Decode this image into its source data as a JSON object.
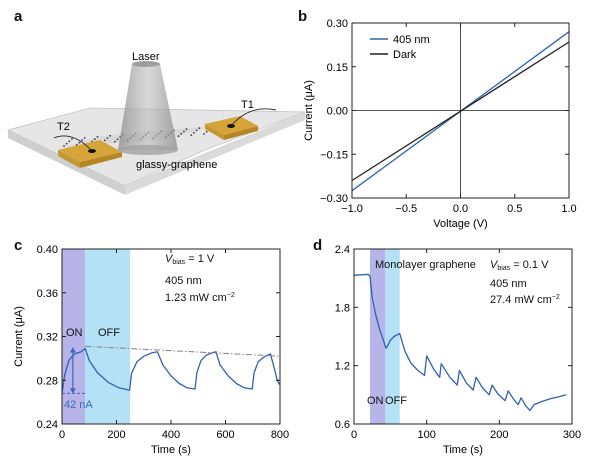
{
  "colors": {
    "blue": "#2f62b0",
    "black": "#222222",
    "gray_dashdot": "#8c7f85",
    "on_shade": "#a9a7e4",
    "off_shade": "#a7dcf5",
    "label_blue": "#3a6ab8",
    "gold": "#d8a93c"
  },
  "panels": {
    "a": {
      "letter": "a",
      "laser_label": "Laser",
      "t1_label": "T1",
      "t2_label": "T2",
      "sample_label": "glassy-graphene"
    },
    "b": {
      "letter": "b",
      "legend_405": "405 nm",
      "legend_dark": "Dark"
    },
    "c": {
      "letter": "c",
      "vbias_symbol": "V",
      "vbias_sub": "bias",
      "vbias_value": " = 1 V",
      "wavelength": "405 nm",
      "power": "1.23 mW cm",
      "power_exp": "−2",
      "on_label": "ON",
      "off_label": "OFF",
      "delta_label": "42 nA"
    },
    "d": {
      "letter": "d",
      "vbias_symbol": "V",
      "vbias_sub": "bias",
      "vbias_value": " = 0.1 V",
      "wavelength": "405 nm",
      "power": "27.4 mW cm",
      "power_exp": "−2",
      "mono_label": "Monolayer graphene",
      "on_label": "ON",
      "off_label": "OFF"
    }
  },
  "chart_data": [
    {
      "panel": "b",
      "type": "line",
      "xlabel": "Voltage (V)",
      "ylabel": "Current (μA)",
      "xlim": [
        -1.0,
        1.0
      ],
      "ylim": [
        -0.3,
        0.3
      ],
      "xticks": [
        "−1.0",
        "−0.5",
        "0.0",
        "0.5",
        "1.0"
      ],
      "yticks": [
        "−0.30",
        "−0.15",
        "0.00",
        "0.15",
        "0.30"
      ],
      "xtick_values": [
        -1.0,
        -0.5,
        0.0,
        0.5,
        1.0
      ],
      "ytick_values": [
        -0.3,
        -0.15,
        0.0,
        0.15,
        0.3
      ],
      "zero_lines": true,
      "legend_position": "top-left",
      "series": [
        {
          "name": "405 nm",
          "color": "#2f62b0",
          "x": [
            -1.0,
            1.0
          ],
          "y": [
            -0.275,
            0.27
          ]
        },
        {
          "name": "Dark",
          "color": "#222222",
          "x": [
            -1.0,
            1.0
          ],
          "y": [
            -0.24,
            0.235
          ]
        }
      ]
    },
    {
      "panel": "c",
      "type": "line",
      "xlabel": "Time (s)",
      "ylabel": "Current (μA)",
      "xlim": [
        0,
        800
      ],
      "ylim": [
        0.24,
        0.4
      ],
      "xticks": [
        "0",
        "200",
        "400",
        "600",
        "800"
      ],
      "yticks": [
        "0.24",
        "0.28",
        "0.32",
        "0.36",
        "0.40"
      ],
      "xtick_values": [
        0,
        200,
        400,
        600,
        800
      ],
      "ytick_values": [
        0.24,
        0.28,
        0.32,
        0.36,
        0.4
      ],
      "shaded_regions": [
        {
          "label": "ON",
          "x": [
            0,
            85
          ]
        },
        {
          "label": "OFF",
          "x": [
            85,
            250
          ]
        }
      ],
      "delta": {
        "value_label": "42 nA",
        "x": 40,
        "y": [
          0.268,
          0.31
        ]
      },
      "series": [
        {
          "color": "#2f62b0",
          "x": [
            0,
            10,
            25,
            45,
            70,
            85,
            100,
            130,
            170,
            210,
            248,
            255,
            275,
            300,
            330,
            350,
            370,
            400,
            430,
            460,
            488,
            495,
            510,
            530,
            550,
            565,
            580,
            610,
            640,
            670,
            698,
            705,
            720,
            740,
            755,
            765,
            780,
            790,
            798
          ],
          "y": [
            0.268,
            0.285,
            0.298,
            0.304,
            0.306,
            0.309,
            0.298,
            0.287,
            0.278,
            0.273,
            0.271,
            0.286,
            0.297,
            0.302,
            0.305,
            0.306,
            0.294,
            0.284,
            0.277,
            0.273,
            0.272,
            0.287,
            0.298,
            0.303,
            0.305,
            0.306,
            0.294,
            0.284,
            0.277,
            0.273,
            0.272,
            0.287,
            0.297,
            0.301,
            0.303,
            0.304,
            0.29,
            0.28,
            0.276
          ]
        },
        {
          "color": "#8c7f85",
          "style": "dash-dot",
          "x": [
            85,
            800
          ],
          "y": [
            0.311,
            0.302
          ]
        }
      ]
    },
    {
      "panel": "d",
      "type": "line",
      "xlabel": "Time (s)",
      "ylabel": "",
      "xlim": [
        0,
        300
      ],
      "ylim": [
        0.6,
        2.4
      ],
      "xticks": [
        "0",
        "100",
        "200",
        "300"
      ],
      "yticks": [
        "0.6",
        "1.2",
        "1.8",
        "2.4"
      ],
      "xtick_values": [
        0,
        100,
        200,
        300
      ],
      "ytick_values": [
        0.6,
        1.2,
        1.8,
        2.4
      ],
      "shaded_regions": [
        {
          "label": "ON",
          "x": [
            22,
            43
          ]
        },
        {
          "label": "OFF",
          "x": [
            43,
            63
          ]
        }
      ],
      "series": [
        {
          "color": "#2f62b0",
          "x": [
            0,
            20,
            22,
            25,
            30,
            35,
            40,
            44,
            46,
            50,
            55,
            60,
            63,
            66,
            70,
            78,
            88,
            97,
            100,
            110,
            118,
            120,
            132,
            142,
            145,
            155,
            164,
            168,
            177,
            186,
            190,
            198,
            208,
            212,
            220,
            226,
            230,
            236,
            242,
            248,
            258,
            270,
            282,
            292
          ],
          "y": [
            2.13,
            2.14,
            2.12,
            1.9,
            1.72,
            1.58,
            1.47,
            1.38,
            1.4,
            1.46,
            1.5,
            1.52,
            1.53,
            1.45,
            1.35,
            1.23,
            1.15,
            1.1,
            1.3,
            1.16,
            1.08,
            1.22,
            1.08,
            1.0,
            1.15,
            1.02,
            0.95,
            1.08,
            0.97,
            0.9,
            1.0,
            0.91,
            0.84,
            0.94,
            0.85,
            0.8,
            0.87,
            0.79,
            0.74,
            0.8,
            0.83,
            0.86,
            0.88,
            0.9
          ]
        }
      ]
    }
  ]
}
